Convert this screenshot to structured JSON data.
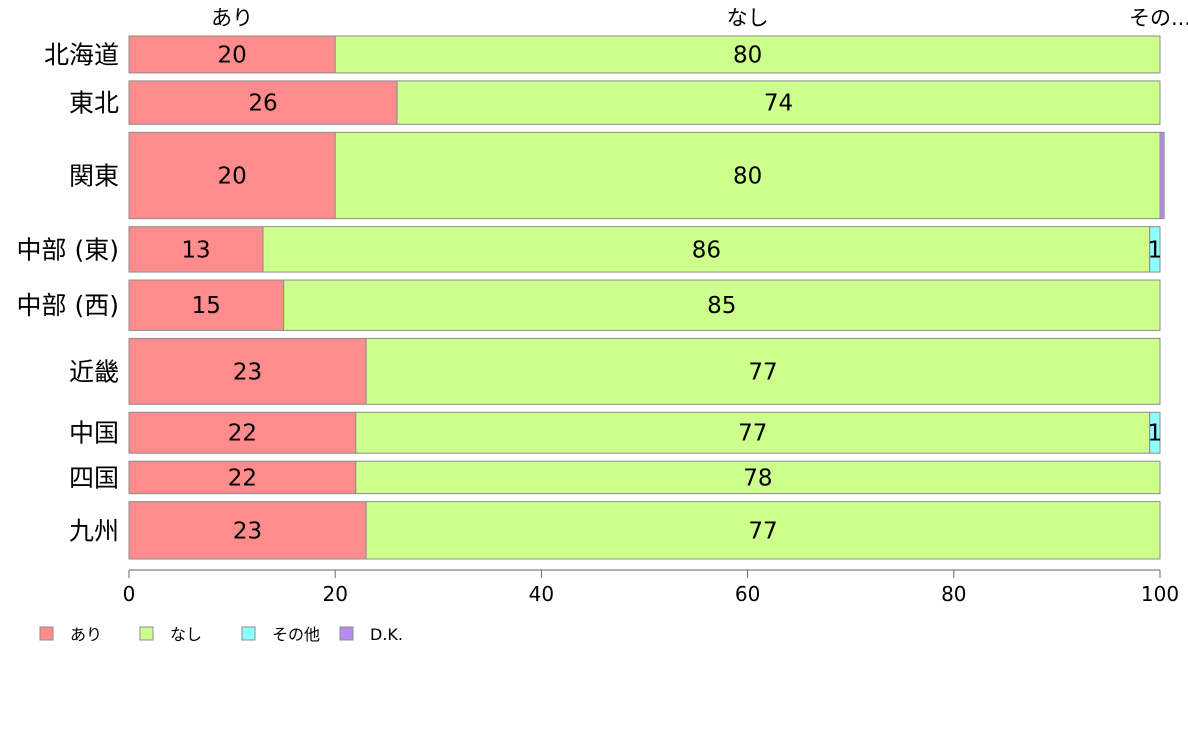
{
  "chart_data": {
    "type": "bar",
    "orientation": "horizontal",
    "stacked": true,
    "categories": [
      "北海道",
      "東北",
      "関東",
      "中部 (東)",
      "中部 (西)",
      "近畿",
      "中国",
      "四国",
      "九州"
    ],
    "series": [
      {
        "name": "あり",
        "color": "#ff8c8c",
        "values": [
          20,
          26,
          20,
          13,
          15,
          23,
          22,
          22,
          23
        ]
      },
      {
        "name": "なし",
        "color": "#cdff8c",
        "values": [
          80,
          74,
          80,
          86,
          85,
          77,
          77,
          78,
          77
        ]
      },
      {
        "name": "その他",
        "color": "#8cffff",
        "values": [
          0,
          0,
          0,
          1,
          0,
          0,
          1,
          0,
          0
        ]
      },
      {
        "name": "D.K.",
        "color": "#b48cf0",
        "values": [
          0,
          0,
          0.4,
          0,
          0,
          0,
          0,
          0,
          0
        ]
      }
    ],
    "data_labels": [
      [
        "20",
        "80",
        "",
        ""
      ],
      [
        "26",
        "74",
        "",
        ""
      ],
      [
        "20",
        "80",
        "",
        ""
      ],
      [
        "13",
        "86",
        "1",
        ""
      ],
      [
        "15",
        "85",
        "",
        ""
      ],
      [
        "23",
        "77",
        "",
        ""
      ],
      [
        "22",
        "77",
        "1",
        ""
      ],
      [
        "22",
        "78",
        "",
        ""
      ],
      [
        "23",
        "77",
        "",
        ""
      ]
    ],
    "relative_widths": [
      0.74,
      0.87,
      1.73,
      0.91,
      1.01,
      1.32,
      0.82,
      0.65,
      1.15
    ],
    "top_labels": [
      "あり",
      "なし",
      "その..."
    ],
    "xlim": [
      0,
      100
    ],
    "xticks": [
      "0",
      "20",
      "40",
      "60",
      "80",
      "100"
    ],
    "legend": [
      "あり",
      "なし",
      "その他",
      "D.K."
    ],
    "legend_position": "bottom-left",
    "grid": false
  }
}
